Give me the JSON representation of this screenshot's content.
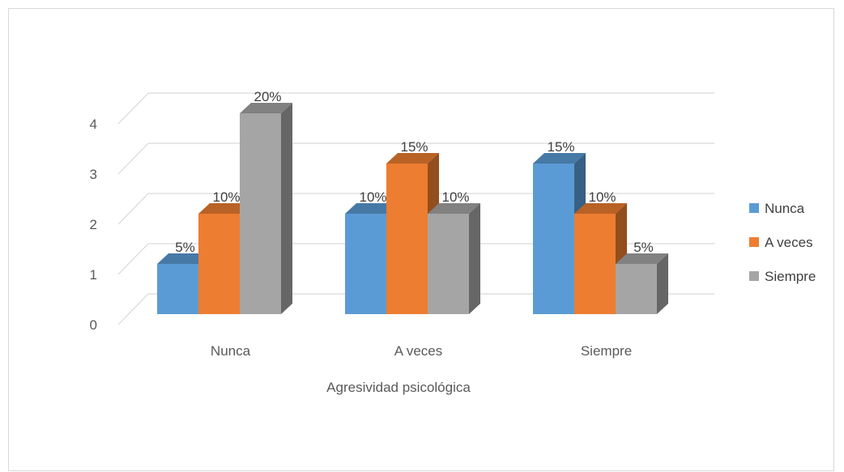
{
  "chart_data": {
    "type": "bar",
    "title": "",
    "xlabel": "Agresividad psicológica",
    "ylabel": "",
    "ylim": [
      0,
      4
    ],
    "yticks": [
      "0",
      "1",
      "2",
      "3",
      "4"
    ],
    "categories": [
      "Nunca",
      "A veces",
      "Siempre"
    ],
    "series": [
      {
        "name": "Nunca",
        "values": [
          1,
          2,
          3
        ],
        "labels": [
          "5%",
          "10%",
          "15%"
        ],
        "color": "#5b9bd5"
      },
      {
        "name": "A veces",
        "values": [
          2,
          3,
          2
        ],
        "labels": [
          "10%",
          "15%",
          "10%"
        ],
        "color": "#ed7d31"
      },
      {
        "name": "Siempre",
        "values": [
          4,
          2,
          1
        ],
        "labels": [
          "20%",
          "10%",
          "5%"
        ],
        "color": "#a5a5a5"
      }
    ],
    "legend_position": "right",
    "grid": true,
    "style": "3d-clustered-column"
  }
}
